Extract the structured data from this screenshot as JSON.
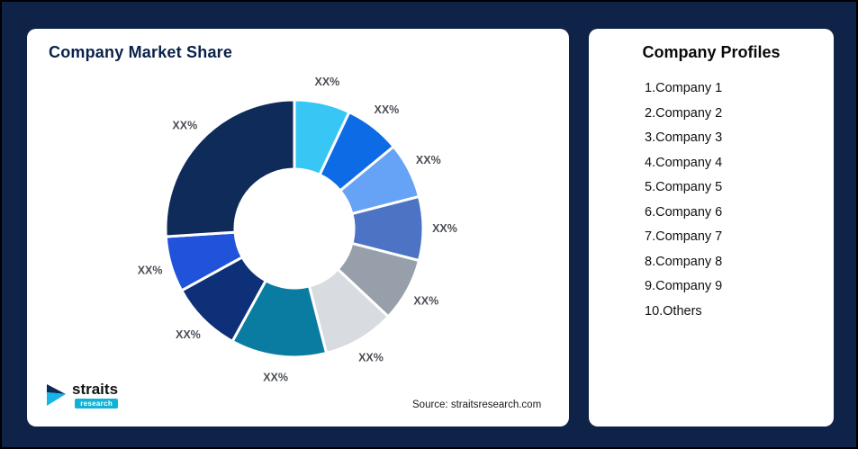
{
  "page": {
    "background": "#0f2349"
  },
  "left_card": {
    "title": "Company Market Share",
    "source": "Source: straitsresearch.com",
    "logo": {
      "brand": "straits",
      "sub": "research"
    }
  },
  "right_card": {
    "title": "Company Profiles",
    "items": [
      "1.Company 1",
      "2.Company 2",
      "3.Company 3",
      "4.Company 4",
      "5.Company 5",
      "6.Company 6",
      "7.Company 7",
      "8.Company 8",
      "9.Company 9",
      "10.Others"
    ]
  },
  "chart_data": {
    "type": "pie",
    "style": "donut",
    "title": "Company Market Share",
    "legend_position": "right-card",
    "categories": [
      "Company 1",
      "Company 2",
      "Company 3",
      "Company 4",
      "Company 5",
      "Company 6",
      "Company 7",
      "Company 8",
      "Company 9",
      "Others"
    ],
    "slice_labels": [
      "XX%",
      "XX%",
      "XX%",
      "XX%",
      "XX%",
      "XX%",
      "XX%",
      "XX%",
      "XX%",
      "XX%"
    ],
    "values_estimated_pct": [
      7,
      7,
      7,
      8,
      8,
      9,
      12,
      9,
      7,
      26
    ],
    "colors": [
      "#38c6f4",
      "#0e6be6",
      "#66a2f5",
      "#4d74c4",
      "#979fab",
      "#d8dbdf",
      "#0b7ca1",
      "#0d3079",
      "#2052da",
      "#0f2b5a"
    ],
    "label_color": "#4b4f55",
    "start_angle_deg": 0,
    "direction": "clockwise"
  }
}
